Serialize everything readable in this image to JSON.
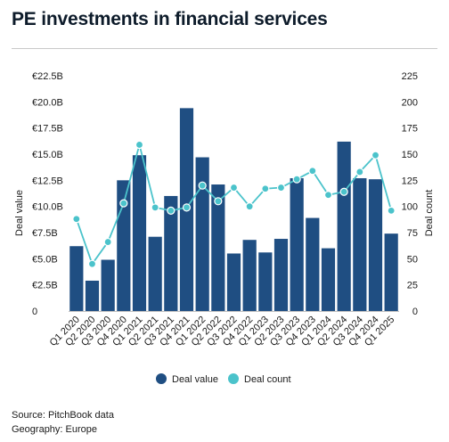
{
  "header": {
    "title": "PE investments in financial services"
  },
  "footer": {
    "source": "Source: PitchBook data",
    "geography": "Geography: Europe"
  },
  "colors": {
    "bar": "#1f4e82",
    "line": "#4bc3cb",
    "grid": "#d9d9d9"
  },
  "chart_data": {
    "type": "bar",
    "categories": [
      "Q1 2020",
      "Q2 2020",
      "Q3 2020",
      "Q4 2020",
      "Q1 2021",
      "Q2 2021",
      "Q3 2021",
      "Q4 2021",
      "Q1 2022",
      "Q2 2022",
      "Q3 2022",
      "Q4 2022",
      "Q1 2023",
      "Q2 2023",
      "Q3 2023",
      "Q4 2023",
      "Q1 2024",
      "Q2 2024",
      "Q3 2024",
      "Q4 2024",
      "Q1 2025"
    ],
    "series": [
      {
        "name": "Deal value",
        "type": "bar",
        "axis": "left",
        "values": [
          6.2,
          2.9,
          4.9,
          12.5,
          14.9,
          7.1,
          11.0,
          19.4,
          14.7,
          12.1,
          5.5,
          6.8,
          5.6,
          6.9,
          12.7,
          8.9,
          6.0,
          16.2,
          12.7,
          12.6,
          7.4
        ]
      },
      {
        "name": "Deal count",
        "type": "line",
        "axis": "right",
        "values": [
          88,
          45,
          66,
          103,
          159,
          99,
          96,
          99,
          120,
          105,
          118,
          100,
          117,
          118,
          126,
          134,
          111,
          114,
          133,
          149,
          96
        ]
      }
    ],
    "y_left": {
      "label": "Deal value",
      "range": [
        0,
        22.5
      ],
      "ticks": [
        "0",
        "€2.5B",
        "€5.0B",
        "€7.5B",
        "€10.0B",
        "€12.5B",
        "€15.0B",
        "€17.5B",
        "€20.0B",
        "€22.5B"
      ]
    },
    "y_right": {
      "label": "Deal count",
      "range": [
        0,
        225
      ],
      "ticks": [
        "0",
        "25",
        "50",
        "75",
        "100",
        "125",
        "150",
        "175",
        "200",
        "225"
      ]
    },
    "grid": false,
    "legend": {
      "position": "bottom"
    }
  }
}
